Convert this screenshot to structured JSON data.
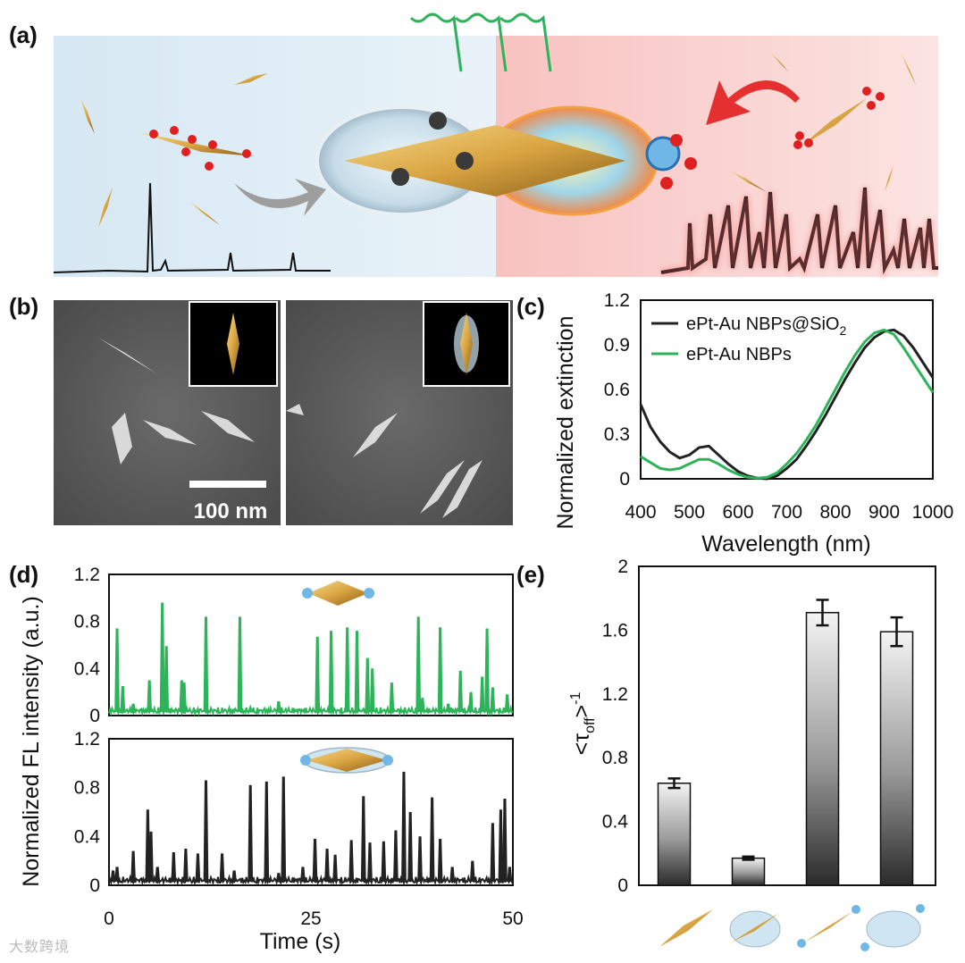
{
  "panels": {
    "a": "(a)",
    "b": "(b)",
    "c": "(c)",
    "d": "(d)",
    "e": "(e)"
  },
  "tem": {
    "scale_bar": "100 nm"
  },
  "watermark": "大数跨境",
  "colors": {
    "green": "#2db35a",
    "black": "#222222",
    "gold": "#d9a441",
    "red": "#e02020"
  },
  "chart_data": [
    {
      "id": "c",
      "type": "line",
      "xlabel": "Wavelength (nm)",
      "ylabel": "Normalized extinction",
      "xlim": [
        400,
        1000
      ],
      "ylim": [
        0,
        1.2
      ],
      "xticks": [
        400,
        500,
        600,
        700,
        800,
        900,
        1000
      ],
      "yticks": [
        0,
        0.3,
        0.6,
        0.9,
        1.2
      ],
      "legend_position": "top-left",
      "series": [
        {
          "name": "ePt-Au NBPs@SiO",
          "name_sub": "2",
          "color": "#222222",
          "points": [
            [
              400,
              0.5
            ],
            [
              420,
              0.35
            ],
            [
              440,
              0.25
            ],
            [
              460,
              0.18
            ],
            [
              480,
              0.14
            ],
            [
              500,
              0.16
            ],
            [
              520,
              0.21
            ],
            [
              540,
              0.22
            ],
            [
              560,
              0.16
            ],
            [
              580,
              0.1
            ],
            [
              600,
              0.05
            ],
            [
              620,
              0.02
            ],
            [
              640,
              0.005
            ],
            [
              660,
              0.0
            ],
            [
              680,
              0.02
            ],
            [
              700,
              0.07
            ],
            [
              720,
              0.13
            ],
            [
              740,
              0.22
            ],
            [
              760,
              0.32
            ],
            [
              780,
              0.43
            ],
            [
              800,
              0.55
            ],
            [
              820,
              0.67
            ],
            [
              840,
              0.78
            ],
            [
              860,
              0.88
            ],
            [
              880,
              0.95
            ],
            [
              900,
              0.99
            ],
            [
              920,
              1.0
            ],
            [
              940,
              0.96
            ],
            [
              960,
              0.88
            ],
            [
              980,
              0.78
            ],
            [
              1000,
              0.68
            ]
          ]
        },
        {
          "name": "ePt-Au NBPs",
          "color": "#2db35a",
          "points": [
            [
              400,
              0.15
            ],
            [
              420,
              0.11
            ],
            [
              440,
              0.07
            ],
            [
              460,
              0.06
            ],
            [
              480,
              0.07
            ],
            [
              500,
              0.1
            ],
            [
              520,
              0.13
            ],
            [
              540,
              0.13
            ],
            [
              560,
              0.1
            ],
            [
              580,
              0.06
            ],
            [
              600,
              0.03
            ],
            [
              620,
              0.01
            ],
            [
              640,
              0.005
            ],
            [
              660,
              0.01
            ],
            [
              680,
              0.04
            ],
            [
              700,
              0.1
            ],
            [
              720,
              0.17
            ],
            [
              740,
              0.26
            ],
            [
              760,
              0.36
            ],
            [
              780,
              0.48
            ],
            [
              800,
              0.6
            ],
            [
              820,
              0.72
            ],
            [
              840,
              0.83
            ],
            [
              860,
              0.92
            ],
            [
              880,
              0.98
            ],
            [
              900,
              1.0
            ],
            [
              920,
              0.97
            ],
            [
              940,
              0.88
            ],
            [
              960,
              0.78
            ],
            [
              980,
              0.68
            ],
            [
              1000,
              0.58
            ]
          ]
        }
      ]
    },
    {
      "id": "d-top",
      "type": "line",
      "ylabel": "Normalized FL intensity (a.u.)",
      "xlim": [
        0,
        50
      ],
      "ylim": [
        0,
        1.2
      ],
      "yticks": [
        0,
        0.4,
        0.8,
        1.2
      ],
      "series": [
        {
          "name": "",
          "color": "#2db35a",
          "peaks": [
            [
              1.0,
              0.74
            ],
            [
              1.7,
              0.25
            ],
            [
              3.0,
              0.1
            ],
            [
              5.0,
              0.3
            ],
            [
              6.6,
              0.96
            ],
            [
              7.1,
              0.59
            ],
            [
              9.0,
              0.3
            ],
            [
              9.3,
              0.28
            ],
            [
              12.0,
              0.84
            ],
            [
              16.2,
              0.84
            ],
            [
              17.5,
              0.06
            ],
            [
              21.0,
              0.12
            ],
            [
              25.8,
              0.67
            ],
            [
              27.5,
              0.72
            ],
            [
              29.5,
              0.75
            ],
            [
              30.7,
              0.72
            ],
            [
              32.0,
              0.49
            ],
            [
              32.6,
              0.4
            ],
            [
              35.0,
              0.28
            ],
            [
              38.3,
              0.84
            ],
            [
              38.8,
              0.15
            ],
            [
              41.0,
              0.75
            ],
            [
              42.0,
              0.1
            ],
            [
              43.5,
              0.38
            ],
            [
              44.8,
              0.2
            ],
            [
              46.2,
              0.33
            ],
            [
              46.8,
              0.74
            ],
            [
              47.5,
              0.24
            ],
            [
              49.3,
              0.18
            ]
          ]
        }
      ]
    },
    {
      "id": "d-bottom",
      "type": "line",
      "xlabel": "Time (s)",
      "xlim": [
        0,
        50
      ],
      "ylim": [
        0,
        1.2
      ],
      "xticks": [
        0,
        25,
        50
      ],
      "yticks": [
        0,
        0.4,
        0.8,
        1.2
      ],
      "series": [
        {
          "name": "",
          "color": "#222222",
          "peaks": [
            [
              0.5,
              0.12
            ],
            [
              1.0,
              0.15
            ],
            [
              3.0,
              0.28
            ],
            [
              4.8,
              0.62
            ],
            [
              5.2,
              0.44
            ],
            [
              6.0,
              0.15
            ],
            [
              8.0,
              0.27
            ],
            [
              9.5,
              0.3
            ],
            [
              11.0,
              0.26
            ],
            [
              12.0,
              0.86
            ],
            [
              14.0,
              0.26
            ],
            [
              15.5,
              0.12
            ],
            [
              17.5,
              0.82
            ],
            [
              19.5,
              0.85
            ],
            [
              21.0,
              0.1
            ],
            [
              21.6,
              0.89
            ],
            [
              24.0,
              0.15
            ],
            [
              25.5,
              0.38
            ],
            [
              27.0,
              0.3
            ],
            [
              28.0,
              0.25
            ],
            [
              30.0,
              0.37
            ],
            [
              31.5,
              0.73
            ],
            [
              32.3,
              0.35
            ],
            [
              34.0,
              0.36
            ],
            [
              35.5,
              0.45
            ],
            [
              36.5,
              0.93
            ],
            [
              37.3,
              0.6
            ],
            [
              38.5,
              0.4
            ],
            [
              40.0,
              0.72
            ],
            [
              41.0,
              0.38
            ],
            [
              42.5,
              0.15
            ],
            [
              45.0,
              0.2
            ],
            [
              47.5,
              0.51
            ],
            [
              48.5,
              0.62
            ],
            [
              49.0,
              0.71
            ],
            [
              49.6,
              0.15
            ]
          ]
        }
      ]
    },
    {
      "id": "e",
      "type": "bar",
      "ylabel": "<τ",
      "ylabel_sub": "off",
      "ylabel_end": ">",
      "ylabel_sup": "-1",
      "ylim": [
        0,
        2
      ],
      "yticks": [
        0,
        0.4,
        0.8,
        1.2,
        1.6,
        2
      ],
      "categories": [
        "ePt-Au NBP",
        "ePt-Au NBP@SiO2",
        "Au NBP",
        "Au NBP@SiO2"
      ],
      "values": [
        0.64,
        0.17,
        1.71,
        1.59
      ],
      "errors": [
        0.03,
        0.01,
        0.08,
        0.09
      ]
    }
  ]
}
